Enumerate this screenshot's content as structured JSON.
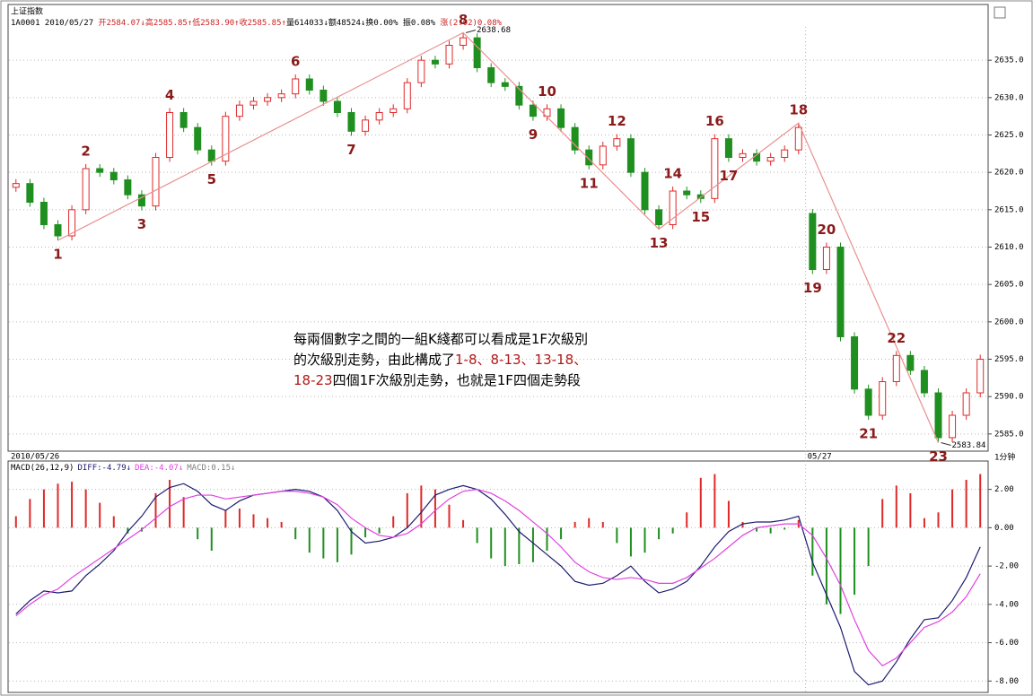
{
  "chart_data": [
    {
      "type": "candlestick",
      "title": "上证指数",
      "info": [
        {
          "text": "1A0001 2010/05/27 ",
          "color": "#000000"
        },
        {
          "text": "开2584.07↓高2585.85↑低2583.90↑收2585.85↑",
          "color": "#d02020"
        },
        {
          "text": "量614033↓额48524↓换0.00% 振0.08% ",
          "color": "#000000"
        },
        {
          "text": "涨(2.02)0.08%",
          "color": "#d02020"
        }
      ],
      "period_label": "1分钟",
      "categories": [
        "2010/05/26",
        null,
        null,
        null,
        null,
        null,
        null,
        null,
        null,
        null,
        null,
        null,
        null,
        null,
        null,
        null,
        null,
        null,
        null,
        null,
        null,
        null,
        null,
        null,
        null,
        null,
        null,
        null,
        null,
        null,
        null,
        null,
        null,
        null,
        null,
        null,
        null,
        null,
        null,
        null,
        null,
        null,
        null,
        null,
        null,
        null,
        null,
        null,
        null,
        null,
        null,
        null,
        null,
        null,
        null,
        null,
        null,
        "05/27",
        null,
        null,
        null,
        null,
        null,
        null,
        null,
        null,
        null,
        null,
        null,
        null
      ],
      "open": [
        2618,
        2618.5,
        2616,
        2613,
        2611.5,
        2615,
        2620.5,
        2620,
        2619,
        2617,
        2615.5,
        2622,
        2628,
        2626,
        2623,
        2621.5,
        2627.5,
        2629,
        2629.5,
        2630,
        2630.5,
        2632.5,
        2631,
        2629.5,
        2628,
        2625.5,
        2627,
        2628,
        2628.5,
        2632,
        2635,
        2634.5,
        2637,
        2638,
        2634,
        2632,
        2631.5,
        2629,
        2627.5,
        2628.5,
        2626,
        2623,
        2621,
        2623.5,
        2624.5,
        2620,
        2615,
        2613,
        2617.5,
        2617,
        2616.5,
        2624.5,
        2622,
        2622.5,
        2621.5,
        2622,
        2623,
        2614.5,
        2607,
        2610,
        2598,
        2591,
        2587.5,
        2592,
        2595.5,
        2593.5,
        2590.5,
        2584.5,
        2587.5,
        2590.5
      ],
      "high": [
        2619.1,
        2619.1,
        2616.6,
        2613.6,
        2615.6,
        2621.1,
        2621.1,
        2620.6,
        2619.6,
        2617.6,
        2622.6,
        2628.6,
        2628.6,
        2626.6,
        2623.6,
        2628.1,
        2629.6,
        2630.1,
        2630.6,
        2631.1,
        2633.1,
        2633.1,
        2631.6,
        2630.1,
        2628.6,
        2627.6,
        2628.6,
        2629.1,
        2632.6,
        2635.6,
        2635.6,
        2637.6,
        2638.68,
        2638.6,
        2634.6,
        2632.6,
        2632.1,
        2629.6,
        2629.1,
        2629.1,
        2626.6,
        2623.6,
        2624.1,
        2625.1,
        2625.1,
        2620.6,
        2615.6,
        2618.1,
        2618.1,
        2617.6,
        2625.1,
        2625.1,
        2623.1,
        2623.1,
        2622.6,
        2623.6,
        2626.6,
        2615.1,
        2610.6,
        2610.6,
        2598.6,
        2591.6,
        2592.6,
        2596.1,
        2596.1,
        2594.1,
        2591.1,
        2588.1,
        2591.1,
        2595.6
      ],
      "low": [
        2617.4,
        2615.4,
        2612.4,
        2610.9,
        2610.9,
        2614.4,
        2619.4,
        2618.4,
        2616.4,
        2614.9,
        2614.9,
        2621.4,
        2625.4,
        2622.4,
        2620.9,
        2620.9,
        2626.9,
        2628.4,
        2628.9,
        2629.4,
        2629.9,
        2630.4,
        2628.9,
        2627.4,
        2624.9,
        2624.9,
        2626.4,
        2627.4,
        2627.9,
        2631.4,
        2633.9,
        2633.9,
        2636.4,
        2633.4,
        2631.4,
        2630.9,
        2628.4,
        2626.9,
        2626.9,
        2625.4,
        2622.4,
        2620.4,
        2620.4,
        2622.9,
        2619.4,
        2614.4,
        2612.4,
        2612.4,
        2616.4,
        2615.9,
        2615.9,
        2621.4,
        2621.4,
        2620.9,
        2620.9,
        2621.4,
        2622.4,
        2606.4,
        2606.4,
        2597.4,
        2590.4,
        2586.9,
        2586.9,
        2591.4,
        2592.9,
        2589.9,
        2583.84,
        2583.9,
        2586.9,
        2589.9
      ],
      "close": [
        2618.5,
        2616,
        2613,
        2611.5,
        2615,
        2620.5,
        2620,
        2619,
        2617,
        2615.5,
        2622,
        2628,
        2626,
        2623,
        2621.5,
        2627.5,
        2629,
        2629.5,
        2630,
        2630.5,
        2632.5,
        2631,
        2629.5,
        2628,
        2625.5,
        2627,
        2628,
        2628.5,
        2632,
        2635,
        2634.5,
        2637,
        2638,
        2634,
        2632,
        2631.5,
        2629,
        2627.5,
        2628.5,
        2626,
        2623,
        2621,
        2623.5,
        2624.5,
        2620,
        2615,
        2613,
        2617.5,
        2617,
        2616.5,
        2624.5,
        2622,
        2622.5,
        2621.5,
        2622,
        2623,
        2626,
        2607,
        2610,
        2598,
        2591,
        2587.5,
        2592,
        2595.5,
        2593.5,
        2590.5,
        2584.5,
        2587.5,
        2590.5,
        2595
      ],
      "up_color": "#e02828",
      "down_color": "#1f8f1f",
      "ylim": [
        2583.3,
        2642.1
      ],
      "yticks": [
        {
          "value": 2585,
          "label": "2585.0"
        },
        {
          "value": 2590,
          "label": "2590.0"
        },
        {
          "value": 2595,
          "label": "2595.0"
        },
        {
          "value": 2600,
          "label": "2600.0"
        },
        {
          "value": 2605,
          "label": "2605.0"
        },
        {
          "value": 2610,
          "label": "2610.0"
        },
        {
          "value": 2615,
          "label": "2615.0"
        },
        {
          "value": 2620,
          "label": "2620.0"
        },
        {
          "value": 2625,
          "label": "2625.0"
        },
        {
          "value": 2630,
          "label": "2630.0"
        },
        {
          "value": 2635,
          "label": "2635.0"
        }
      ],
      "grid": true,
      "pivots": [
        {
          "label": "1",
          "index": 3,
          "place": "below"
        },
        {
          "label": "2",
          "index": 5,
          "place": "above"
        },
        {
          "label": "3",
          "index": 9,
          "place": "below"
        },
        {
          "label": "4",
          "index": 11,
          "place": "above"
        },
        {
          "label": "5",
          "index": 14,
          "place": "below"
        },
        {
          "label": "6",
          "index": 20,
          "place": "above"
        },
        {
          "label": "7",
          "index": 24,
          "place": "below"
        },
        {
          "label": "8",
          "index": 32,
          "place": "above"
        },
        {
          "label": "9",
          "index": 37,
          "place": "below"
        },
        {
          "label": "10",
          "index": 38,
          "place": "above"
        },
        {
          "label": "11",
          "index": 41,
          "place": "below"
        },
        {
          "label": "12",
          "index": 43,
          "place": "above"
        },
        {
          "label": "13",
          "index": 46,
          "place": "below"
        },
        {
          "label": "14",
          "index": 47,
          "place": "above"
        },
        {
          "label": "15",
          "index": 49,
          "place": "below"
        },
        {
          "label": "16",
          "index": 50,
          "place": "above"
        },
        {
          "label": "17",
          "index": 51,
          "place": "below"
        },
        {
          "label": "18",
          "index": 56,
          "place": "above"
        },
        {
          "label": "19",
          "index": 57,
          "place": "below"
        },
        {
          "label": "20",
          "index": 58,
          "place": "above"
        },
        {
          "label": "21",
          "index": 61,
          "place": "below"
        },
        {
          "label": "22",
          "index": 63,
          "place": "above"
        },
        {
          "label": "23",
          "index": 66,
          "place": "below"
        }
      ],
      "pivot_color": "#8b1a1a",
      "trend_pivots": [
        0,
        7,
        12,
        17,
        22
      ],
      "trend_color": "#e89090",
      "extreme_labels": [
        {
          "label": "2638.68",
          "index": 32,
          "field": "high"
        },
        {
          "label": "2583.84",
          "index": 66,
          "field": "low"
        }
      ],
      "note": [
        [
          {
            "text": "每兩個數字之間的一組K綫都可以看成是1F次級別",
            "color": "#000000"
          }
        ],
        [
          {
            "text": "的次級別走勢，由此構成了",
            "color": "#000000"
          },
          {
            "text": "1-8、8-13、13-18、",
            "color": "#b01818"
          }
        ],
        [
          {
            "text": "18-23",
            "color": "#b01818"
          },
          {
            "text": "四個1F次級別走勢，也就是1F四個走勢段",
            "color": "#000000"
          }
        ]
      ]
    },
    {
      "type": "macd",
      "label": "MACD(26,12,9)",
      "series": [
        {
          "name": "DIFF:-4.79↓",
          "color": "#1c1c70",
          "values": [
            -4.5,
            -3.8,
            -3.3,
            -3.4,
            -3.3,
            -2.5,
            -1.9,
            -1.2,
            -0.2,
            0.6,
            1.6,
            2.1,
            2.3,
            1.9,
            1.2,
            0.9,
            1.4,
            1.7,
            1.8,
            1.9,
            2.0,
            1.9,
            1.6,
            0.9,
            -0.2,
            -0.8,
            -0.7,
            -0.5,
            0.0,
            0.8,
            1.7,
            2.0,
            2.2,
            2.0,
            1.5,
            0.7,
            -0.2,
            -0.8,
            -1.4,
            -2.0,
            -2.8,
            -3.0,
            -2.9,
            -2.5,
            -2.0,
            -2.8,
            -3.4,
            -3.2,
            -2.8,
            -2.0,
            -1.0,
            -0.2,
            0.2,
            0.3,
            0.3,
            0.4,
            0.6,
            -1.8,
            -3.5,
            -5.2,
            -7.5,
            -8.2,
            -8.0,
            -7.0,
            -5.8,
            -4.8,
            -4.7,
            -3.8,
            -2.6,
            -1.0
          ]
        },
        {
          "name": "DEA:-4.07↓",
          "color": "#e040e0",
          "values": [
            -4.6,
            -4.0,
            -3.5,
            -3.2,
            -2.6,
            -2.1,
            -1.6,
            -1.1,
            -0.6,
            -0.1,
            0.5,
            1.1,
            1.5,
            1.7,
            1.7,
            1.5,
            1.6,
            1.7,
            1.8,
            1.9,
            1.9,
            1.8,
            1.6,
            1.2,
            0.5,
            0.0,
            -0.4,
            -0.5,
            -0.3,
            0.2,
            0.9,
            1.5,
            1.9,
            2.0,
            1.8,
            1.4,
            0.9,
            0.3,
            -0.3,
            -1.0,
            -1.8,
            -2.3,
            -2.6,
            -2.7,
            -2.6,
            -2.7,
            -2.9,
            -2.9,
            -2.6,
            -2.1,
            -1.6,
            -1.0,
            -0.4,
            0.0,
            0.1,
            0.2,
            0.2,
            -0.4,
            -1.6,
            -3.0,
            -4.8,
            -6.4,
            -7.2,
            -6.8,
            -6.0,
            -5.2,
            -4.9,
            -4.4,
            -3.6,
            -2.4
          ]
        }
      ],
      "histogram": {
        "name": "MACD:0.15↓",
        "color": "#808080",
        "up_color": "#e02828",
        "down_color": "#1f8f1f",
        "values": [
          0.6,
          1.5,
          2.0,
          2.3,
          2.4,
          2.0,
          1.3,
          0.6,
          -0.3,
          -0.2,
          1.8,
          2.5,
          1.6,
          -0.6,
          -1.2,
          0.9,
          1.0,
          0.7,
          0.5,
          0.3,
          -0.6,
          -1.3,
          -1.6,
          -1.8,
          -1.4,
          -0.5,
          -0.3,
          0.6,
          1.8,
          2.2,
          2.0,
          1.2,
          0.4,
          -0.8,
          -1.6,
          -2.0,
          -1.9,
          -1.8,
          -1.2,
          -0.6,
          0.3,
          0.5,
          0.3,
          -0.8,
          -1.5,
          -1.3,
          -0.6,
          -0.3,
          0.8,
          2.6,
          2.8,
          1.4,
          0.3,
          -0.2,
          -0.3,
          -0.1,
          0.4,
          -2.5,
          -4.0,
          -4.5,
          -3.5,
          -2.0,
          1.5,
          2.2,
          1.8,
          0.5,
          0.8,
          2.0,
          2.5,
          2.8
        ]
      },
      "ylim": [
        -8.5,
        3.2
      ],
      "yticks": [
        {
          "value": 2,
          "label": "2.00"
        },
        {
          "value": 0,
          "label": "0.00"
        },
        {
          "value": -2,
          "label": "-2.00"
        },
        {
          "value": -4,
          "label": "-4.00"
        },
        {
          "value": -6,
          "label": "-6.00"
        },
        {
          "value": -8,
          "label": "-8.00"
        }
      ],
      "grid": true
    }
  ]
}
